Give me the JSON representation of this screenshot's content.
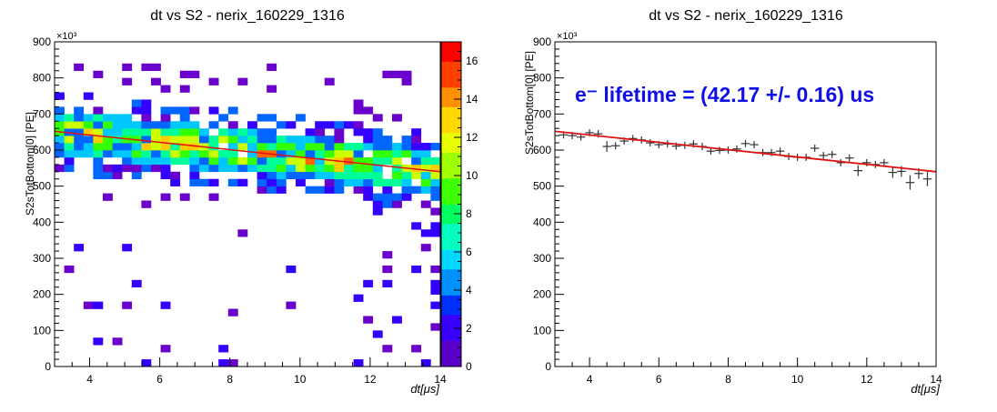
{
  "chart_data": [
    {
      "type": "heatmap",
      "title": "dt vs S2 - nerix_160229_1316",
      "xlabel": "dt[μs]",
      "ylabel": "S2sTotBottom[0] [PE]",
      "y_exponent": "×10³",
      "xlim": [
        3,
        14
      ],
      "ylim": [
        0,
        900
      ],
      "x_ticks": [
        4,
        6,
        8,
        10,
        12,
        14
      ],
      "y_ticks": [
        0,
        100,
        200,
        300,
        400,
        500,
        600,
        700,
        800,
        900
      ],
      "z_ticks": [
        0,
        2,
        4,
        6,
        8,
        10,
        12,
        14,
        16
      ],
      "zlim": [
        0,
        17
      ],
      "palette": [
        "#6a00cc",
        "#3300ff",
        "#0066ff",
        "#00c8ff",
        "#00ff99",
        "#33ff00",
        "#ccff00",
        "#ffcc00",
        "#ff6600",
        "#ff0000"
      ],
      "fit_line": {
        "x": [
          3,
          14
        ],
        "y": [
          652,
          540
        ],
        "color": "#e01010"
      }
    },
    {
      "type": "scatter",
      "title": "dt vs S2 - nerix_160229_1316",
      "xlabel": "dt[μs]",
      "ylabel": "S2sTotBottom[0] [PE]",
      "y_exponent": "×10³",
      "xlim": [
        3,
        14
      ],
      "ylim": [
        0,
        900
      ],
      "x_ticks": [
        4,
        6,
        8,
        10,
        12,
        14
      ],
      "y_ticks": [
        0,
        100,
        200,
        300,
        400,
        500,
        600,
        700,
        800,
        900
      ],
      "annotation": "e⁻ lifetime = (42.17 +/- 0.16) us",
      "annotation_color": "#1010e6",
      "points": {
        "x": [
          3.25,
          3.5,
          3.75,
          4.0,
          4.25,
          4.5,
          4.75,
          5.0,
          5.25,
          5.5,
          5.75,
          6.0,
          6.25,
          6.5,
          6.75,
          7.0,
          7.25,
          7.5,
          7.75,
          8.0,
          8.25,
          8.5,
          8.75,
          9.0,
          9.25,
          9.5,
          9.75,
          10.0,
          10.25,
          10.5,
          10.75,
          11.0,
          11.25,
          11.5,
          11.75,
          12.0,
          12.25,
          12.5,
          12.75,
          13.0,
          13.25,
          13.5,
          13.75
        ],
        "y": [
          642,
          640,
          636,
          648,
          645,
          610,
          612,
          625,
          632,
          628,
          620,
          615,
          617,
          611,
          613,
          617,
          610,
          597,
          599,
          600,
          603,
          618,
          615,
          593,
          593,
          597,
          582,
          580,
          580,
          605,
          585,
          588,
          565,
          578,
          543,
          565,
          560,
          565,
          538,
          541,
          510,
          535,
          520
        ],
        "yerr": [
          10,
          10,
          10,
          10,
          10,
          15,
          10,
          10,
          10,
          10,
          10,
          10,
          10,
          10,
          10,
          10,
          10,
          10,
          10,
          10,
          10,
          10,
          10,
          10,
          10,
          10,
          10,
          10,
          10,
          10,
          10,
          10,
          10,
          10,
          15,
          10,
          10,
          10,
          15,
          15,
          20,
          15,
          20
        ]
      },
      "fit_line": {
        "x": [
          3,
          14
        ],
        "y": [
          652,
          540
        ],
        "color": "#e01010"
      }
    }
  ]
}
